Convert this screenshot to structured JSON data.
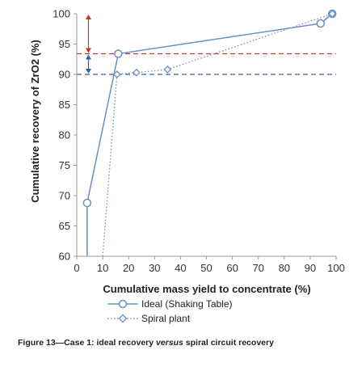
{
  "chart_data": {
    "type": "line",
    "xlabel": "Cumulative mass yield to concentrate (%)",
    "ylabel": "Cumulative recovery of ZrO2 (%)",
    "xlim": [
      0,
      100
    ],
    "ylim": [
      60,
      100
    ],
    "x_ticks": [
      "0",
      "10",
      "20",
      "30",
      "40",
      "50",
      "60",
      "70",
      "80",
      "90",
      "100"
    ],
    "y_ticks": [
      "60",
      "65",
      "70",
      "75",
      "80",
      "85",
      "90",
      "95",
      "100"
    ],
    "grid": false,
    "legend_position": "bottom",
    "series": [
      {
        "name": "Ideal (Shaking Table)",
        "color": "#6b8fc5",
        "line_style": "solid",
        "marker": "circle",
        "points": [
          [
            4,
            55
          ],
          [
            4,
            68.8
          ],
          [
            16,
            93.4
          ],
          [
            94,
            98.4
          ],
          [
            98.5,
            100
          ]
        ],
        "marked_points": [
          [
            4,
            68.8
          ],
          [
            16,
            93.4
          ],
          [
            94,
            98.4
          ],
          [
            98.5,
            100
          ]
        ]
      },
      {
        "name": "Spiral plant",
        "color": "#6b8fc5",
        "line_style": "dotted",
        "marker": "diamond",
        "points": [
          [
            10,
            55
          ],
          [
            15.5,
            90
          ],
          [
            23,
            90.3
          ],
          [
            35,
            90.8
          ],
          [
            98.5,
            100
          ]
        ],
        "marked_points": [
          [
            15.5,
            90
          ],
          [
            23,
            90.3
          ],
          [
            35,
            90.8
          ],
          [
            98.5,
            100
          ]
        ]
      }
    ],
    "reference_lines": [
      {
        "y": 93.4,
        "color": "#c0392b",
        "style": "dashed"
      },
      {
        "y": 90,
        "color": "#3b5ea8",
        "style": "dashed"
      }
    ],
    "annotations": [
      {
        "type": "double-arrow",
        "x": 4.5,
        "from": 93.4,
        "to": 100,
        "color": "#c0392b"
      },
      {
        "type": "double-arrow",
        "x": 4.5,
        "from": 90,
        "to": 93.4,
        "color": "#3b5ea8"
      }
    ]
  },
  "caption": {
    "prefix": "Figure 13—Case 1: ideal recovery ",
    "italic": "versus",
    "suffix": " spiral circuit recovery"
  }
}
